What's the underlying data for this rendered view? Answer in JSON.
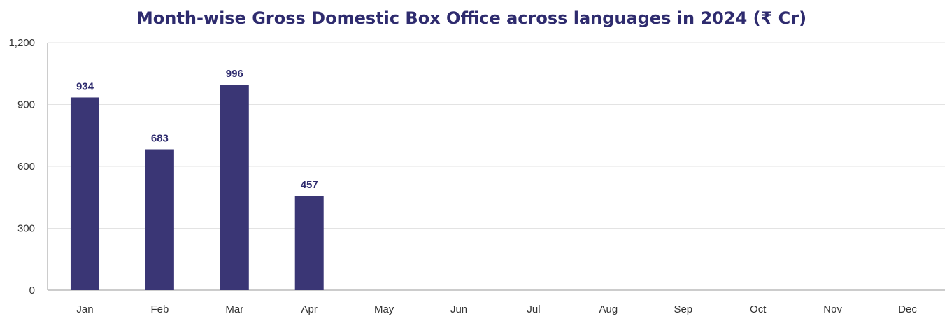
{
  "chart_data": {
    "type": "bar",
    "title": "Month-wise Gross Domestic Box Office across languages in 2024 (₹ Cr)",
    "xlabel": "",
    "ylabel": "",
    "categories": [
      "Jan",
      "Feb",
      "Mar",
      "Apr",
      "May",
      "Jun",
      "Jul",
      "Aug",
      "Sep",
      "Oct",
      "Nov",
      "Dec"
    ],
    "values": [
      934,
      683,
      996,
      457,
      null,
      null,
      null,
      null,
      null,
      null,
      null,
      null
    ],
    "data_labels": [
      "934",
      "683",
      "996",
      "457",
      "",
      "",
      "",
      "",
      "",
      "",
      "",
      ""
    ],
    "ylim": [
      0,
      1200
    ],
    "yticks": [
      0,
      300,
      600,
      900,
      1200
    ],
    "ytick_labels": [
      "0",
      "300",
      "600",
      "900",
      "1,200"
    ],
    "grid": true,
    "bar_color": "#3a3675",
    "title_color": "#2e2b6e"
  }
}
